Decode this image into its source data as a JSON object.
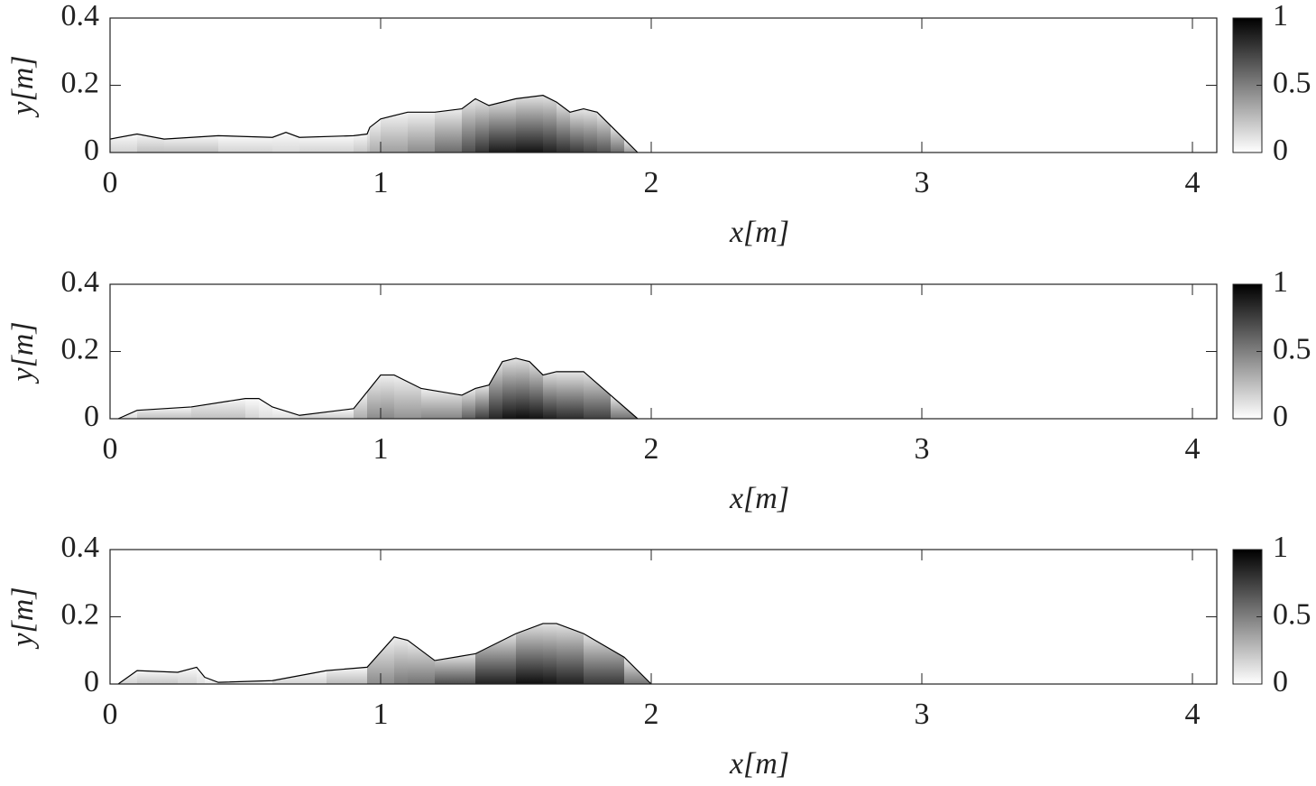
{
  "chart_data": [
    {
      "type": "contour",
      "xlabel": "x[m]",
      "ylabel": "y[m]",
      "x": [
        0,
        0.1,
        0.2,
        0.4,
        0.6,
        0.65,
        0.7,
        0.9,
        0.95,
        0.96,
        1.0,
        1.1,
        1.2,
        1.3,
        1.35,
        1.4,
        1.5,
        1.6,
        1.65,
        1.7,
        1.75,
        1.8,
        1.85,
        1.9,
        1.95
      ],
      "y": [
        0.04,
        0.055,
        0.04,
        0.05,
        0.045,
        0.06,
        0.045,
        0.05,
        0.055,
        0.075,
        0.1,
        0.12,
        0.12,
        0.13,
        0.16,
        0.14,
        0.16,
        0.17,
        0.15,
        0.12,
        0.13,
        0.12,
        0.08,
        0.04,
        0
      ],
      "values": [
        0.15,
        0.2,
        0.3,
        0.2,
        0.15,
        0.15,
        0.15,
        0.2,
        0.25,
        0.3,
        0.35,
        0.4,
        0.5,
        0.65,
        0.75,
        0.85,
        0.95,
        0.9,
        0.85,
        0.8,
        0.75,
        0.7,
        0.65,
        0.5,
        0.3
      ],
      "xlim": [
        0,
        4.09
      ],
      "ylim": [
        0,
        0.4
      ],
      "xticks": [
        0,
        1,
        2,
        3,
        4
      ],
      "yticks": [
        0,
        0.2,
        0.4
      ],
      "clim": [
        0,
        1
      ],
      "cticks": [
        0,
        0.5,
        1
      ],
      "colormap": [
        "#ffffff",
        "#000000"
      ]
    },
    {
      "type": "contour",
      "xlabel": "x[m]",
      "ylabel": "y[m]",
      "x": [
        0.03,
        0.1,
        0.3,
        0.5,
        0.55,
        0.6,
        0.7,
        0.9,
        0.95,
        1.0,
        1.05,
        1.15,
        1.3,
        1.35,
        1.4,
        1.45,
        1.5,
        1.55,
        1.6,
        1.65,
        1.75,
        1.85,
        1.95
      ],
      "y": [
        0,
        0.025,
        0.035,
        0.06,
        0.06,
        0.035,
        0.01,
        0.03,
        0.08,
        0.13,
        0.13,
        0.09,
        0.07,
        0.09,
        0.1,
        0.17,
        0.18,
        0.17,
        0.13,
        0.14,
        0.14,
        0.07,
        0
      ],
      "values": [
        0.1,
        0.2,
        0.3,
        0.2,
        0.15,
        0.1,
        0.15,
        0.25,
        0.4,
        0.5,
        0.45,
        0.4,
        0.55,
        0.7,
        0.8,
        0.9,
        0.95,
        0.95,
        0.9,
        0.85,
        0.8,
        0.7,
        0.4
      ],
      "xlim": [
        0,
        4.09
      ],
      "ylim": [
        0,
        0.4
      ],
      "xticks": [
        0,
        1,
        2,
        3,
        4
      ],
      "yticks": [
        0,
        0.2,
        0.4
      ],
      "clim": [
        0,
        1
      ],
      "cticks": [
        0,
        0.5,
        1
      ],
      "colormap": [
        "#ffffff",
        "#000000"
      ]
    },
    {
      "type": "contour",
      "xlabel": "x[m]",
      "ylabel": "y[m]",
      "x": [
        0.03,
        0.1,
        0.25,
        0.32,
        0.35,
        0.4,
        0.6,
        0.8,
        0.95,
        1.05,
        1.1,
        1.2,
        1.35,
        1.5,
        1.6,
        1.65,
        1.75,
        1.9,
        2.0
      ],
      "y": [
        0,
        0.04,
        0.035,
        0.05,
        0.02,
        0.005,
        0.01,
        0.04,
        0.05,
        0.14,
        0.13,
        0.07,
        0.09,
        0.15,
        0.18,
        0.18,
        0.15,
        0.08,
        0
      ],
      "values": [
        0.1,
        0.25,
        0.2,
        0.15,
        0.1,
        0.1,
        0.15,
        0.2,
        0.35,
        0.55,
        0.5,
        0.6,
        0.8,
        0.95,
        0.95,
        0.9,
        0.85,
        0.7,
        0.4
      ],
      "xlim": [
        0,
        4.09
      ],
      "ylim": [
        0,
        0.4
      ],
      "xticks": [
        0,
        1,
        2,
        3,
        4
      ],
      "yticks": [
        0,
        0.2,
        0.4
      ],
      "clim": [
        0,
        1
      ],
      "cticks": [
        0,
        0.5,
        1
      ],
      "colormap": [
        "#ffffff",
        "#000000"
      ]
    }
  ]
}
